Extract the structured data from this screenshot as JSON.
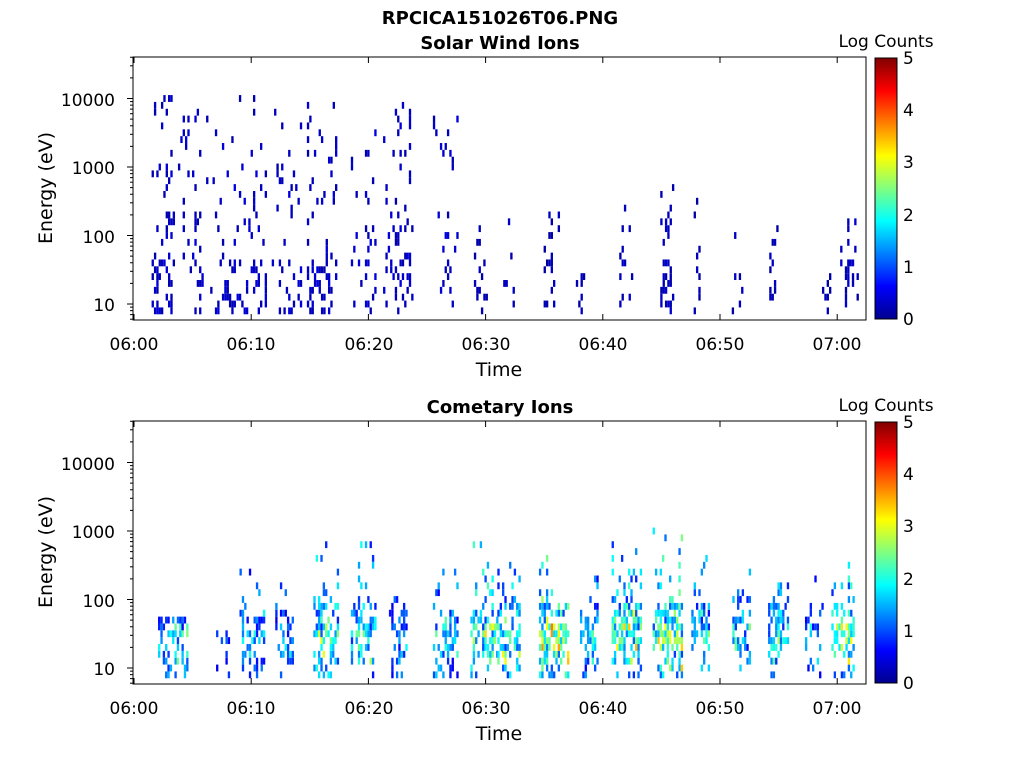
{
  "figure": {
    "title": "RPCICA151026T06.PNG"
  },
  "chart_data": [
    {
      "type": "heatmap",
      "title": "Solar Wind Ions",
      "xlabel": "Time",
      "ylabel": "Energy (eV)",
      "yscale": "log",
      "ylim": [
        6,
        45000
      ],
      "xlim": [
        "06:00",
        "07:02"
      ],
      "xticks": [
        "06:00",
        "06:10",
        "06:20",
        "06:30",
        "06:40",
        "06:50",
        "07:00"
      ],
      "yticks": [
        "10",
        "100",
        "1000",
        "10000"
      ],
      "colorbar": {
        "label": "Log Counts",
        "range": [
          0,
          5
        ],
        "ticks": [
          "0",
          "1",
          "2",
          "3",
          "4",
          "5"
        ],
        "colormap": "jet"
      },
      "bursts": [
        {
          "t": 2.5,
          "w": 2.0,
          "pattern": "sparse_core",
          "level": 0.3,
          "max_log_e": 4.1,
          "density": 0.25
        },
        {
          "t": 5.0,
          "w": 2.5,
          "pattern": "sparse_core",
          "level": 0.3,
          "max_log_e": 3.9,
          "density": 0.15
        },
        {
          "t": 7.5,
          "w": 2.0,
          "pattern": "sparse_core",
          "level": 0.3,
          "max_log_e": 3.8,
          "density": 0.15
        },
        {
          "t": 10.0,
          "w": 2.5,
          "pattern": "sparse_core",
          "level": 0.3,
          "max_log_e": 4.1,
          "density": 0.2
        },
        {
          "t": 13.0,
          "w": 2.5,
          "pattern": "sparse_core",
          "level": 0.3,
          "max_log_e": 3.9,
          "density": 0.15
        },
        {
          "t": 16.0,
          "w": 2.5,
          "pattern": "sparse_core",
          "level": 0.3,
          "max_log_e": 4.0,
          "density": 0.25
        },
        {
          "t": 19.5,
          "w": 2.0,
          "pattern": "sparse_core",
          "level": 0.3,
          "max_log_e": 3.8,
          "density": 0.15
        },
        {
          "t": 22.5,
          "w": 2.5,
          "pattern": "sparse_core",
          "level": 0.3,
          "max_log_e": 4.0,
          "density": 0.2
        },
        {
          "t": 26.5,
          "w": 2.0,
          "pattern": "sparse_core",
          "level": 0.3,
          "max_log_e": 3.8,
          "density": 0.15
        },
        {
          "t": 29.5,
          "w": 1.0,
          "pattern": "sparse_core",
          "level": 0.2,
          "max_log_e": 2.3,
          "density": 0.12
        },
        {
          "t": 32.0,
          "w": 1.0,
          "pattern": "sparse_core",
          "level": 0.2,
          "max_log_e": 2.3,
          "density": 0.12
        },
        {
          "t": 35.5,
          "w": 1.5,
          "pattern": "sparse_core",
          "level": 0.2,
          "max_log_e": 2.4,
          "density": 0.15
        },
        {
          "t": 38.0,
          "w": 1.0,
          "pattern": "sparse_core",
          "level": 0.2,
          "max_log_e": 2.4,
          "density": 0.1
        },
        {
          "t": 42.0,
          "w": 1.2,
          "pattern": "sparse_core",
          "level": 0.25,
          "max_log_e": 2.6,
          "density": 0.2
        },
        {
          "t": 45.5,
          "w": 1.2,
          "pattern": "sparse_core",
          "level": 0.25,
          "max_log_e": 2.8,
          "density": 0.25
        },
        {
          "t": 48.0,
          "w": 0.5,
          "pattern": "sparse_core",
          "level": 0.2,
          "max_log_e": 2.6,
          "density": 0.1
        },
        {
          "t": 51.5,
          "w": 1.0,
          "pattern": "sparse_core",
          "level": 0.2,
          "max_log_e": 2.4,
          "density": 0.1
        },
        {
          "t": 54.5,
          "w": 1.0,
          "pattern": "sparse_core",
          "level": 0.2,
          "max_log_e": 2.4,
          "density": 0.12
        },
        {
          "t": 59.0,
          "w": 1.0,
          "pattern": "sparse_core",
          "level": 0.2,
          "max_log_e": 2.0,
          "density": 0.1
        },
        {
          "t": 61.0,
          "w": 1.5,
          "pattern": "sparse_core",
          "level": 0.25,
          "max_log_e": 2.3,
          "density": 0.2
        }
      ]
    },
    {
      "type": "heatmap",
      "title": "Cometary Ions",
      "xlabel": "Time",
      "ylabel": "Energy (eV)",
      "yscale": "log",
      "ylim": [
        6,
        45000
      ],
      "xlim": [
        "06:00",
        "07:02"
      ],
      "xticks": [
        "06:00",
        "06:10",
        "06:20",
        "06:30",
        "06:40",
        "06:50",
        "07:00"
      ],
      "yticks": [
        "10",
        "100",
        "1000",
        "10000"
      ],
      "colorbar": {
        "label": "Log Counts",
        "range": [
          0,
          5
        ],
        "ticks": [
          "0",
          "1",
          "2",
          "3",
          "4",
          "5"
        ],
        "colormap": "jet"
      },
      "bursts": [
        {
          "t": 3.3,
          "w": 2.5,
          "pattern": "dense",
          "level": 1.2,
          "max_log_e": 1.8,
          "density": 0.6
        },
        {
          "t": 7.5,
          "w": 1.0,
          "pattern": "dense",
          "level": 0.6,
          "max_log_e": 1.6,
          "density": 0.4
        },
        {
          "t": 10.0,
          "w": 2.0,
          "pattern": "dense",
          "level": 1.0,
          "max_log_e": 2.6,
          "density": 0.55
        },
        {
          "t": 12.8,
          "w": 1.5,
          "pattern": "dense",
          "level": 0.9,
          "max_log_e": 2.5,
          "density": 0.5
        },
        {
          "t": 16.3,
          "w": 2.0,
          "pattern": "dense",
          "level": 1.4,
          "max_log_e": 2.9,
          "density": 0.65
        },
        {
          "t": 19.5,
          "w": 2.0,
          "pattern": "dense",
          "level": 1.3,
          "max_log_e": 2.9,
          "density": 0.6
        },
        {
          "t": 22.5,
          "w": 1.5,
          "pattern": "dense",
          "level": 0.9,
          "max_log_e": 2.2,
          "density": 0.5
        },
        {
          "t": 26.5,
          "w": 2.0,
          "pattern": "dense",
          "level": 1.1,
          "max_log_e": 2.5,
          "density": 0.6
        },
        {
          "t": 29.8,
          "w": 2.2,
          "pattern": "dense",
          "level": 1.5,
          "max_log_e": 3.0,
          "density": 0.7
        },
        {
          "t": 32.0,
          "w": 2.0,
          "pattern": "dense",
          "level": 1.4,
          "max_log_e": 2.8,
          "density": 0.65
        },
        {
          "t": 35.8,
          "w": 2.5,
          "pattern": "dense",
          "level": 1.8,
          "max_log_e": 2.8,
          "density": 0.75
        },
        {
          "t": 38.8,
          "w": 1.5,
          "pattern": "dense",
          "level": 1.1,
          "max_log_e": 2.5,
          "density": 0.55
        },
        {
          "t": 42.0,
          "w": 2.5,
          "pattern": "dense",
          "level": 1.6,
          "max_log_e": 2.9,
          "density": 0.75
        },
        {
          "t": 45.5,
          "w": 2.5,
          "pattern": "dense",
          "level": 1.7,
          "max_log_e": 3.1,
          "density": 0.75
        },
        {
          "t": 48.3,
          "w": 1.5,
          "pattern": "dense",
          "level": 1.2,
          "max_log_e": 2.7,
          "density": 0.6
        },
        {
          "t": 51.8,
          "w": 1.5,
          "pattern": "dense",
          "level": 1.2,
          "max_log_e": 2.6,
          "density": 0.6
        },
        {
          "t": 55.0,
          "w": 1.8,
          "pattern": "dense",
          "level": 1.3,
          "max_log_e": 2.7,
          "density": 0.6
        },
        {
          "t": 58.0,
          "w": 1.5,
          "pattern": "dense",
          "level": 0.9,
          "max_log_e": 2.5,
          "density": 0.5
        },
        {
          "t": 60.5,
          "w": 2.0,
          "pattern": "dense",
          "level": 1.5,
          "max_log_e": 2.6,
          "density": 0.65
        }
      ]
    }
  ]
}
